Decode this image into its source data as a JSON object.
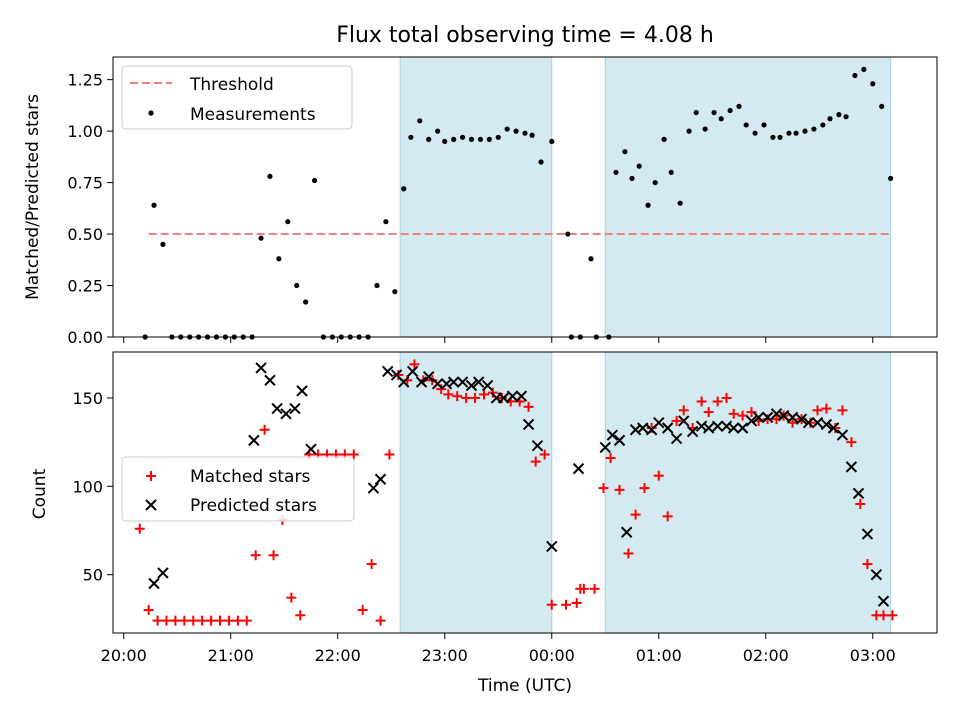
{
  "chart_data": [
    {
      "type": "scatter",
      "title": "Flux total observing time = 4.08 h",
      "ylabel": "Matched/Predicted stars",
      "xlabel": "",
      "ylim": [
        0,
        1.36
      ],
      "xlim_hours": [
        19.9,
        27.6
      ],
      "ticks_y": [
        "0.00",
        "0.25",
        "0.50",
        "0.75",
        "1.00",
        "1.25"
      ],
      "grid": false,
      "legend_position": "upper-left",
      "shaded_intervals": [
        [
          "22:35",
          "00:00"
        ],
        [
          "00:30",
          "03:10"
        ]
      ],
      "shade_color": "#d3eaf0",
      "series": [
        {
          "name": "Threshold",
          "style": "dashed-line",
          "color": "#f08080",
          "x": [
            "20:14",
            "03:10"
          ],
          "y": [
            0.5,
            0.5
          ]
        },
        {
          "name": "Measurements",
          "style": "dot",
          "color": "#000000",
          "x": [
            "20:12",
            "20:17",
            "20:22",
            "20:27",
            "20:32",
            "20:37",
            "20:42",
            "20:47",
            "20:52",
            "20:57",
            "21:02",
            "21:07",
            "21:12",
            "21:17",
            "21:22",
            "21:27",
            "21:32",
            "21:37",
            "21:42",
            "21:47",
            "21:52",
            "21:57",
            "22:02",
            "22:07",
            "22:12",
            "22:17",
            "22:22",
            "22:27",
            "22:32",
            "22:37",
            "22:41",
            "22:46",
            "22:51",
            "22:56",
            "23:00",
            "23:05",
            "23:10",
            "23:15",
            "23:20",
            "23:25",
            "23:30",
            "23:35",
            "23:40",
            "23:45",
            "23:49",
            "23:54",
            "00:00",
            "00:09",
            "00:11",
            "00:16",
            "00:22",
            "00:25",
            "00:32",
            "00:36",
            "00:41",
            "00:45",
            "00:49",
            "00:54",
            "00:58",
            "01:03",
            "01:07",
            "01:12",
            "01:17",
            "01:21",
            "01:26",
            "01:31",
            "01:35",
            "01:40",
            "01:45",
            "01:49",
            "01:54",
            "01:59",
            "02:04",
            "02:08",
            "02:13",
            "02:17",
            "02:22",
            "02:27",
            "02:32",
            "02:36",
            "02:41",
            "02:45",
            "02:50",
            "02:55",
            "03:00",
            "03:05",
            "03:10"
          ],
          "y": [
            0.0,
            0.64,
            0.45,
            0.0,
            0.0,
            0.0,
            0.0,
            0.0,
            0.0,
            0.0,
            0.0,
            0.0,
            0.0,
            0.48,
            0.78,
            0.38,
            0.56,
            0.25,
            0.17,
            0.76,
            0.0,
            0.0,
            0.0,
            0.0,
            0.0,
            0.0,
            0.25,
            0.56,
            0.22,
            0.72,
            0.97,
            1.05,
            0.96,
            1.0,
            0.95,
            0.96,
            0.97,
            0.96,
            0.96,
            0.96,
            0.97,
            1.01,
            1.0,
            0.99,
            0.98,
            0.85,
            0.95,
            0.5,
            0.0,
            0.0,
            0.38,
            0.0,
            0.0,
            0.8,
            0.9,
            0.77,
            0.83,
            0.64,
            0.75,
            0.96,
            0.8,
            0.65,
            1.0,
            1.09,
            1.01,
            1.09,
            1.06,
            1.1,
            1.12,
            1.03,
            0.99,
            1.03,
            0.97,
            0.97,
            0.99,
            0.99,
            1.0,
            1.01,
            1.03,
            1.06,
            1.08,
            1.07,
            1.27,
            1.3,
            1.23,
            1.12,
            0.77
          ]
        }
      ]
    },
    {
      "type": "scatter",
      "title": "",
      "ylabel": "Count",
      "xlabel": "Time (UTC)",
      "ylim": [
        17,
        176
      ],
      "xlim_hours": [
        19.9,
        27.6
      ],
      "ticks_y": [
        "50",
        "100",
        "150"
      ],
      "ticks_x": [
        "20:00",
        "21:00",
        "22:00",
        "23:00",
        "00:00",
        "01:00",
        "02:00",
        "03:00"
      ],
      "grid": false,
      "legend_position": "center-left",
      "shaded_intervals": [
        [
          "22:35",
          "00:00"
        ],
        [
          "00:30",
          "03:10"
        ]
      ],
      "series": [
        {
          "name": "Matched stars",
          "marker": "plus",
          "color": "#ff0000",
          "x": [
            "20:09",
            "20:14",
            "20:19",
            "20:24",
            "20:29",
            "20:34",
            "20:39",
            "20:44",
            "20:49",
            "20:54",
            "20:59",
            "21:04",
            "21:09",
            "21:14",
            "21:19",
            "21:24",
            "21:29",
            "21:34",
            "21:39",
            "21:44",
            "21:49",
            "21:54",
            "21:59",
            "22:04",
            "22:09",
            "22:14",
            "22:19",
            "22:24",
            "22:29",
            "22:34",
            "22:39",
            "22:43",
            "22:48",
            "22:53",
            "22:58",
            "23:02",
            "23:07",
            "23:12",
            "23:17",
            "23:22",
            "23:27",
            "23:32",
            "23:37",
            "23:42",
            "23:47",
            "23:51",
            "23:56",
            "00:00",
            "00:08",
            "00:14",
            "00:16",
            "00:18",
            "00:24",
            "00:29",
            "00:33",
            "00:38",
            "00:43",
            "00:47",
            "00:52",
            "00:56",
            "01:00",
            "01:05",
            "01:10",
            "01:14",
            "01:19",
            "01:24",
            "01:28",
            "01:33",
            "01:38",
            "01:42",
            "01:47",
            "01:52",
            "01:56",
            "02:01",
            "02:06",
            "02:10",
            "02:15",
            "02:20",
            "02:25",
            "02:29",
            "02:34",
            "02:39",
            "02:43",
            "02:48",
            "02:53",
            "02:57",
            "03:02",
            "03:06",
            "03:11"
          ],
          "y": [
            76,
            30,
            24,
            24,
            24,
            24,
            24,
            24,
            24,
            24,
            24,
            24,
            24,
            61,
            132,
            61,
            81,
            37,
            27,
            118,
            118,
            118,
            118,
            118,
            118,
            30,
            56,
            24,
            118,
            163,
            160,
            169,
            160,
            160,
            155,
            152,
            151,
            150,
            150,
            152,
            153,
            150,
            148,
            148,
            145,
            114,
            118,
            33,
            33,
            34,
            42,
            42,
            42,
            99,
            116,
            98,
            62,
            84,
            99,
            133,
            106,
            83,
            137,
            143,
            133,
            148,
            142,
            148,
            150,
            141,
            140,
            142,
            137,
            138,
            138,
            140,
            136,
            138,
            136,
            143,
            144,
            133,
            143,
            125,
            90,
            56,
            27,
            27,
            27
          ]
        },
        {
          "name": "Predicted stars",
          "marker": "x",
          "color": "#000000",
          "x": [
            "20:17",
            "20:22",
            "21:13",
            "21:17",
            "21:22",
            "21:26",
            "21:31",
            "21:36",
            "21:40",
            "21:45",
            "22:20",
            "22:24",
            "22:28",
            "22:33",
            "22:37",
            "22:42",
            "22:47",
            "22:51",
            "22:56",
            "23:01",
            "23:05",
            "23:10",
            "23:15",
            "23:19",
            "23:24",
            "23:29",
            "23:33",
            "23:38",
            "23:43",
            "23:47",
            "23:52",
            "00:00",
            "00:15",
            "00:30",
            "00:34",
            "00:38",
            "00:42",
            "00:47",
            "00:51",
            "00:56",
            "01:00",
            "01:05",
            "01:10",
            "01:14",
            "01:19",
            "01:24",
            "01:28",
            "01:33",
            "01:38",
            "01:42",
            "01:47",
            "01:52",
            "01:56",
            "02:01",
            "02:06",
            "02:10",
            "02:15",
            "02:20",
            "02:24",
            "02:29",
            "02:34",
            "02:38",
            "02:43",
            "02:48",
            "02:52",
            "02:57",
            "03:02",
            "03:06"
          ],
          "y": [
            45,
            51,
            126,
            167,
            160,
            144,
            141,
            144,
            154,
            121,
            99,
            104,
            165,
            163,
            159,
            165,
            159,
            162,
            158,
            158,
            159,
            159,
            157,
            159,
            157,
            150,
            150,
            151,
            151,
            135,
            123,
            66,
            110,
            122,
            129,
            126,
            74,
            132,
            133,
            132,
            136,
            133,
            127,
            137,
            131,
            134,
            133,
            134,
            134,
            133,
            133,
            137,
            139,
            139,
            141,
            140,
            139,
            138,
            136,
            136,
            135,
            133,
            129,
            111,
            96,
            73,
            50,
            35
          ]
        }
      ]
    }
  ]
}
